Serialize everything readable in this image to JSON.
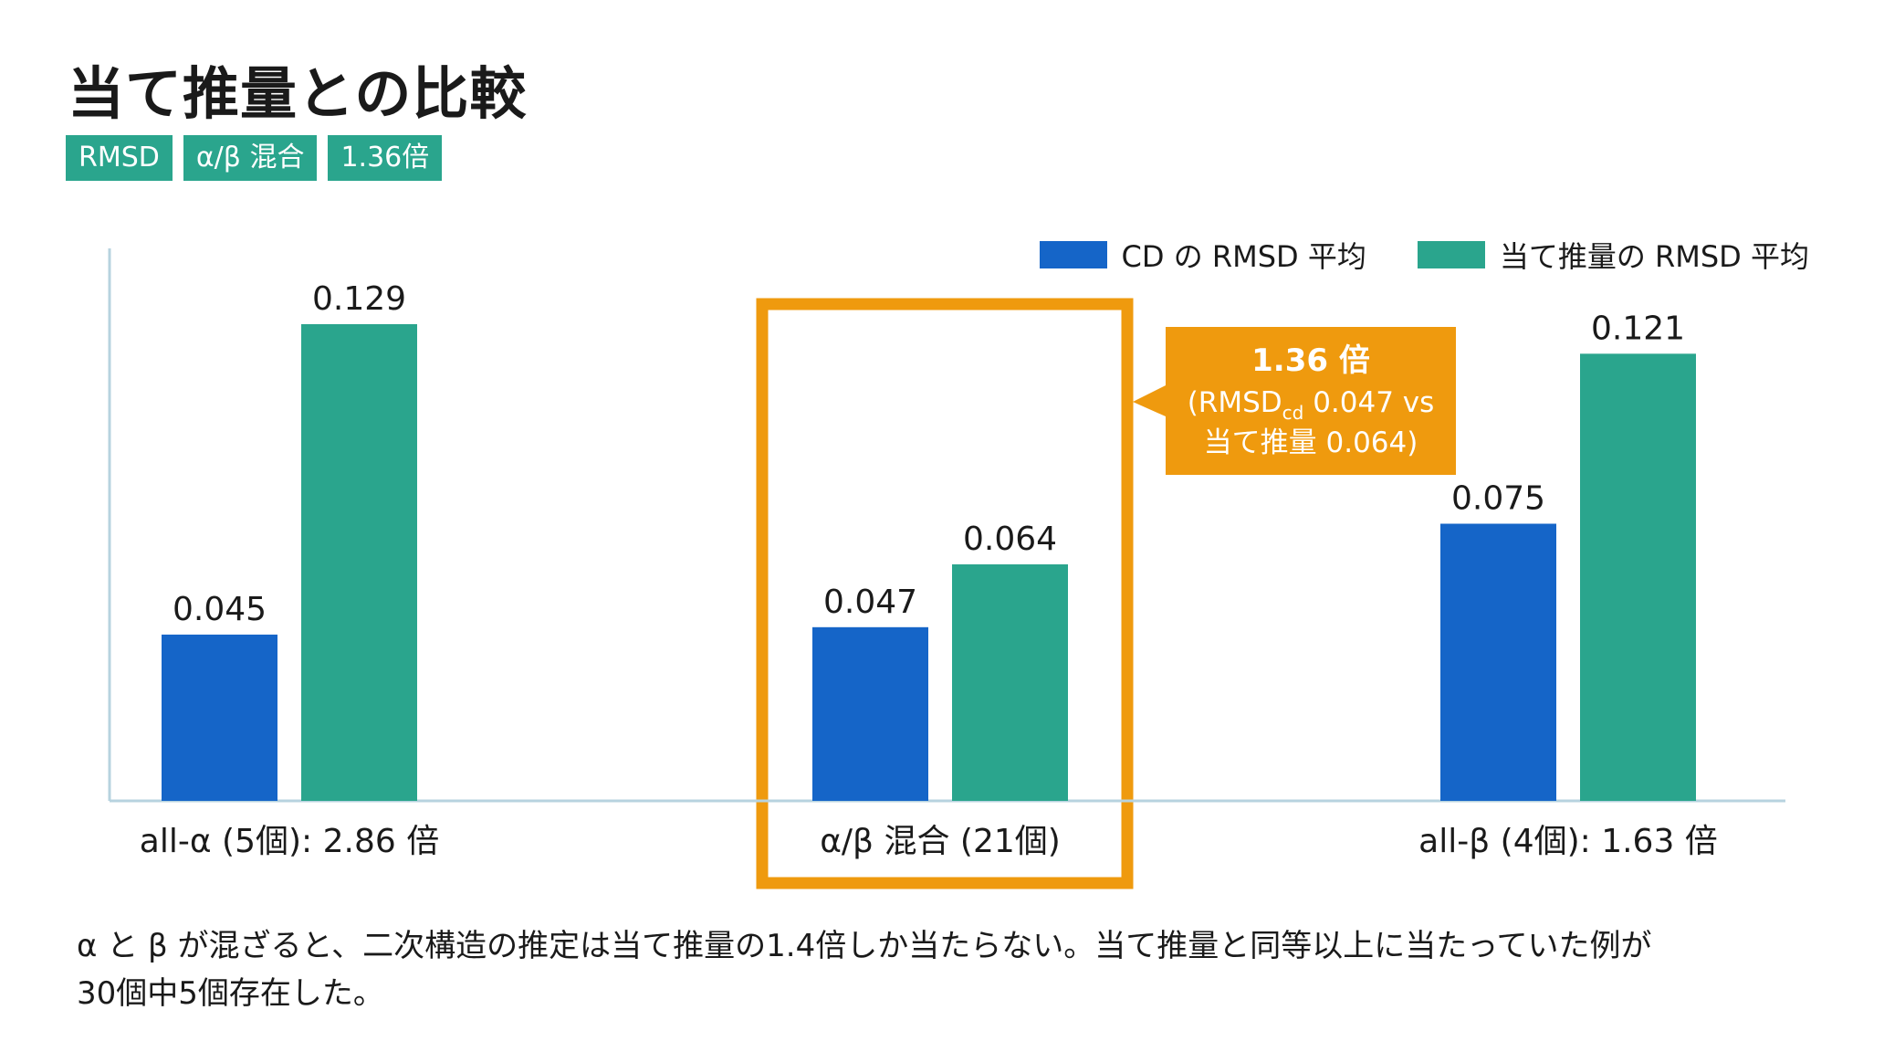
{
  "title": "当て推量との比較",
  "tags": [
    "RMSD",
    "α/β 混合",
    "1.36倍"
  ],
  "legend": [
    {
      "label": "CD の RMSD 平均",
      "color": "#1565c8"
    },
    {
      "label": "当て推量の RMSD 平均",
      "color": "#2aa58d"
    }
  ],
  "chart_data": {
    "type": "bar",
    "categories": [
      "all-α (5個): 2.86 倍",
      "α/β 混合 (21個)",
      "all-β (4個): 1.63 倍"
    ],
    "series": [
      {
        "name": "CD の RMSD 平均",
        "values": [
          0.045,
          0.047,
          0.075
        ],
        "labels": [
          "0.045",
          "0.047",
          "0.075"
        ],
        "color": "#1565c8"
      },
      {
        "name": "当て推量の RMSD 平均",
        "values": [
          0.129,
          0.064,
          0.121
        ],
        "labels": [
          "0.129",
          "0.064",
          "0.121"
        ],
        "color": "#2aa58d"
      }
    ],
    "ylim": [
      0,
      0.15
    ],
    "highlight": {
      "category_index": 1,
      "color": "#ef9a0e"
    },
    "annotation": {
      "line1": "1.36 倍",
      "line2_prefix": "(RMSD",
      "line2_sub": "cd",
      "line2_suffix": " 0.047 vs",
      "line3": "当て推量 0.064)",
      "color": "#ef9a0e"
    }
  },
  "caption": {
    "line1": "α と β が混ざると、二次構造の推定は当て推量の1.4倍しか当たらない。当て推量と同等以上に当たっていた例が",
    "line2": "30個中5個存在した。"
  }
}
